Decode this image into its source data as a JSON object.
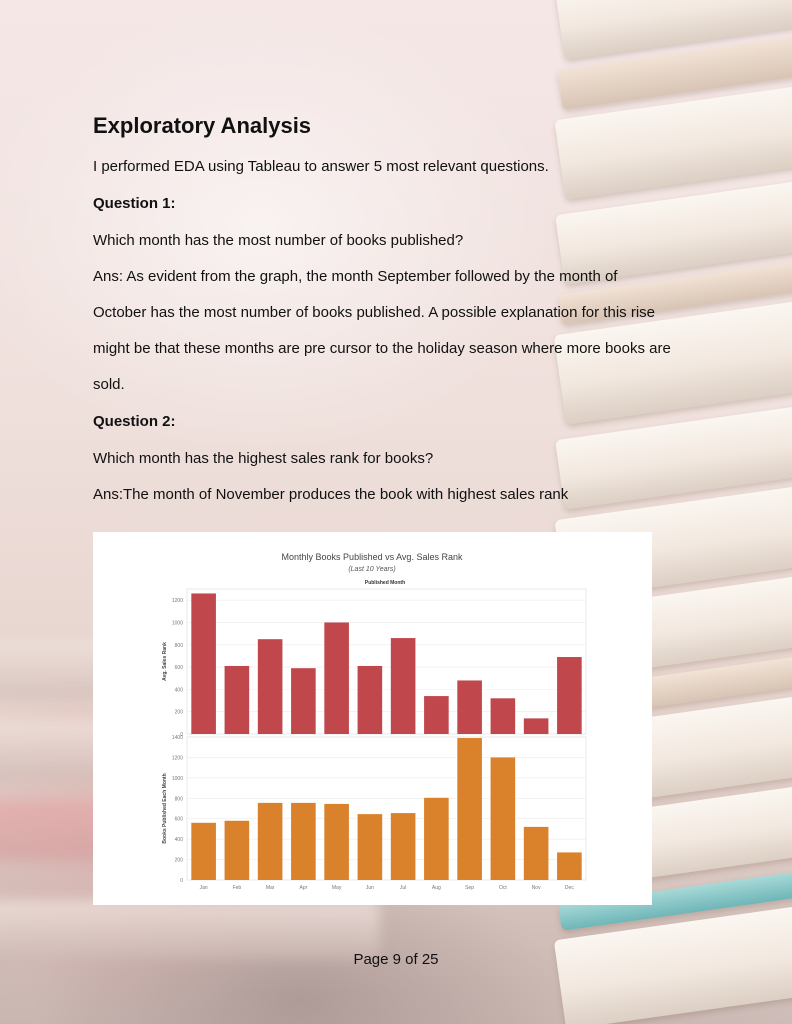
{
  "heading": "Exploratory Analysis",
  "intro": "I performed EDA using Tableau to answer 5 most relevant questions.",
  "q1": {
    "label": "Question 1:",
    "question": "Which month has the most number of books published?",
    "answer_lines": [
      "Ans: As evident from the graph, the month September followed by the month of",
      "October has the most number of books published. A possible explanation for this rise",
      "might be that these months are pre cursor to the holiday season where more books are",
      "sold."
    ]
  },
  "q2": {
    "label": "Question 2:",
    "question": "Which month has the highest sales rank for books?",
    "answer": "Ans:The month of November produces the book with highest sales rank"
  },
  "chart_data": [
    {
      "type": "bar",
      "title": "Monthly Books Published vs Avg. Sales Rank",
      "subtitle": "(Last 10 Years)",
      "header": "Published Month",
      "categories": [
        "Jan",
        "Feb",
        "Mar",
        "Apr",
        "May",
        "Jun",
        "Jul",
        "Aug",
        "Sep",
        "Oct",
        "Nov",
        "Dec"
      ],
      "ylabel": "Avg. Sales Rank",
      "ylim": [
        0,
        1300
      ],
      "yticks": [
        0,
        200,
        400,
        600,
        800,
        1000,
        1200
      ],
      "values": [
        1260,
        610,
        850,
        590,
        1000,
        610,
        860,
        340,
        480,
        320,
        140,
        690
      ],
      "color": "#c0474c",
      "grid": true
    },
    {
      "type": "bar",
      "categories": [
        "Jan",
        "Feb",
        "Mar",
        "Apr",
        "May",
        "Jun",
        "Jul",
        "Aug",
        "Sep",
        "Oct",
        "Nov",
        "Dec"
      ],
      "ylabel": "Books Published Each Month",
      "ylim": [
        0,
        1400
      ],
      "yticks": [
        0,
        200,
        400,
        600,
        800,
        1000,
        1200,
        1400
      ],
      "values": [
        560,
        580,
        755,
        755,
        745,
        645,
        655,
        805,
        1390,
        1200,
        520,
        270
      ],
      "color": "#d9822b",
      "grid": true
    }
  ],
  "footer": "Page 9 of 25"
}
